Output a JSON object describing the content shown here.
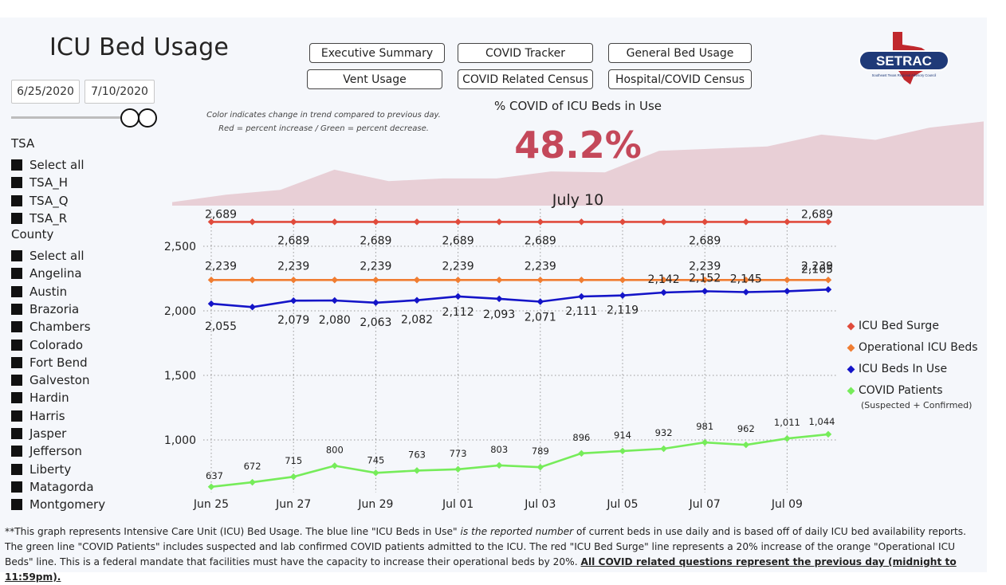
{
  "page": {
    "title": "ICU Bed Usage",
    "date_start": "6/25/2020",
    "date_end": "7/10/2020"
  },
  "nav": {
    "buttons": [
      "Executive Summary",
      "COVID Tracker",
      "General Bed Usage",
      "Vent Usage",
      "COVID Related Census",
      "Hospital/COVID Census"
    ]
  },
  "logo": {
    "text": "SETRAC",
    "subtext": "Southeast Texas Regional Advisory Council"
  },
  "filters": {
    "tsa_label": "TSA",
    "tsa_items": [
      "Select all",
      "TSA_H",
      "TSA_Q",
      "TSA_R"
    ],
    "county_label": "County",
    "county_items": [
      "Select all",
      "Angelina",
      "Austin",
      "Brazoria",
      "Chambers",
      "Colorado",
      "Fort Bend",
      "Galveston",
      "Hardin",
      "Harris",
      "Jasper",
      "Jefferson",
      "Liberty",
      "Matagorda",
      "Montgomery"
    ]
  },
  "kpi": {
    "note": "Color indicates change in trend compared to previous day. Red = percent increase / Green = percent decrease.",
    "title": "% COVID of ICU Beds in Use",
    "value": "48.2%",
    "date": "July 10",
    "trend_values": [
      0.08,
      0.25,
      0.36,
      0.82,
      0.56,
      0.62,
      0.62,
      0.78,
      0.76,
      1.25,
      1.3,
      1.35,
      1.62,
      1.5,
      1.78,
      1.92
    ],
    "color_fill": "#e8cfd6"
  },
  "chart_data": {
    "type": "line",
    "categories": [
      "Jun 25",
      "Jun 26",
      "Jun 27",
      "Jun 28",
      "Jun 29",
      "Jun 30",
      "Jul 01",
      "Jul 02",
      "Jul 03",
      "Jul 04",
      "Jul 05",
      "Jul 06",
      "Jul 07",
      "Jul 08",
      "Jul 09",
      "Jul 10"
    ],
    "xtick_labels": [
      "Jun 25",
      "Jun 27",
      "Jun 29",
      "Jul 01",
      "Jul 03",
      "Jul 05",
      "Jul 07",
      "Jul 09"
    ],
    "ylim": [
      650,
      2700
    ],
    "yticks": [
      1000,
      1500,
      2000,
      2500
    ],
    "ytick_labels": [
      "1,000",
      "1,500",
      "2,000",
      "2,500"
    ],
    "series": [
      {
        "name": "ICU Bed Surge",
        "color": "#e04b3c",
        "values": [
          2689,
          2689,
          2689,
          2689,
          2689,
          2689,
          2689,
          2689,
          2689,
          2689,
          2689,
          2689,
          2689,
          2689,
          2689,
          2689
        ]
      },
      {
        "name": "Operational ICU Beds",
        "color": "#f07d32",
        "values": [
          2239,
          2239,
          2239,
          2239,
          2239,
          2239,
          2239,
          2239,
          2239,
          2239,
          2239,
          2239,
          2239,
          2239,
          2239,
          2239
        ]
      },
      {
        "name": "ICU Beds In Use",
        "color": "#1414c8",
        "values": [
          2055,
          2029,
          2079,
          2080,
          2063,
          2082,
          2112,
          2093,
          2071,
          2111,
          2119,
          2142,
          2152,
          2145,
          2152,
          2165
        ]
      },
      {
        "name": "COVID Patients",
        "color": "#76ec5a",
        "values": [
          637,
          672,
          715,
          800,
          745,
          763,
          773,
          803,
          789,
          896,
          914,
          932,
          981,
          962,
          1011,
          1044
        ]
      }
    ],
    "labels": {
      "surge_top": [
        {
          "i": 0,
          "text": "2,689"
        },
        {
          "i": 15,
          "text": "2,689"
        }
      ],
      "surge_below": [
        {
          "i": 2,
          "text": "2,689"
        },
        {
          "i": 4,
          "text": "2,689"
        },
        {
          "i": 6,
          "text": "2,689"
        },
        {
          "i": 8,
          "text": "2,689"
        },
        {
          "i": 12,
          "text": "2,689"
        }
      ],
      "operational": [
        {
          "i": 0,
          "text": "2,239"
        },
        {
          "i": 2,
          "text": "2,239"
        },
        {
          "i": 4,
          "text": "2,239"
        },
        {
          "i": 6,
          "text": "2,239"
        },
        {
          "i": 8,
          "text": "2,239"
        },
        {
          "i": 12,
          "text": "2,239"
        },
        {
          "i": 15,
          "text": "2,239"
        }
      ],
      "in_use": [
        {
          "i": 0,
          "text": "2,055"
        },
        {
          "i": 2,
          "text": "2,079"
        },
        {
          "i": 3,
          "text": "2,080"
        },
        {
          "i": 4,
          "text": "2,063"
        },
        {
          "i": 5,
          "text": "2,082"
        },
        {
          "i": 6,
          "text": "2,112"
        },
        {
          "i": 7,
          "text": "2,093"
        },
        {
          "i": 8,
          "text": "2,071"
        },
        {
          "i": 9,
          "text": "2,111"
        },
        {
          "i": 10,
          "text": "2,119"
        },
        {
          "i": 11,
          "text": "2,142"
        },
        {
          "i": 12,
          "text": "2,152"
        },
        {
          "i": 13,
          "text": "2,145"
        },
        {
          "i": 15,
          "text": "2,165"
        }
      ],
      "covid": [
        {
          "i": 0,
          "text": "637"
        },
        {
          "i": 1,
          "text": "672"
        },
        {
          "i": 2,
          "text": "715"
        },
        {
          "i": 3,
          "text": "800"
        },
        {
          "i": 4,
          "text": "745"
        },
        {
          "i": 5,
          "text": "763"
        },
        {
          "i": 6,
          "text": "773"
        },
        {
          "i": 7,
          "text": "803"
        },
        {
          "i": 8,
          "text": "789"
        },
        {
          "i": 9,
          "text": "896"
        },
        {
          "i": 10,
          "text": "914"
        },
        {
          "i": 11,
          "text": "932"
        },
        {
          "i": 12,
          "text": "981"
        },
        {
          "i": 13,
          "text": "962"
        },
        {
          "i": 14,
          "text": "1,011"
        },
        {
          "i": 15,
          "text": "1,044"
        }
      ]
    }
  },
  "legend": {
    "items": [
      "ICU Bed Surge",
      "Operational ICU Beds",
      "ICU Beds In Use",
      "COVID Patients"
    ],
    "covid_sub": "(Suspected + Confirmed)"
  },
  "footnote": {
    "part1": "**This graph represents Intensive Care Unit (ICU) Bed Usage. The blue line \"ICU Beds in Use\" ",
    "part2": "is the reported number",
    "part3": " of current beds in use daily and is based off of daily ICU bed availability reports. The green line \"COVID Patients\" includes suspected and lab confirmed COVID patients admitted to the ICU. The red \"ICU Bed Surge\" line represents a 20% increase of the orange \"Operational ICU Beds\" line. This is a federal mandate that facilities must have the capacity to increase their operational beds by 20%. ",
    "part4": "All COVID related questions represent the previous day (midnight to 11:59pm)."
  }
}
